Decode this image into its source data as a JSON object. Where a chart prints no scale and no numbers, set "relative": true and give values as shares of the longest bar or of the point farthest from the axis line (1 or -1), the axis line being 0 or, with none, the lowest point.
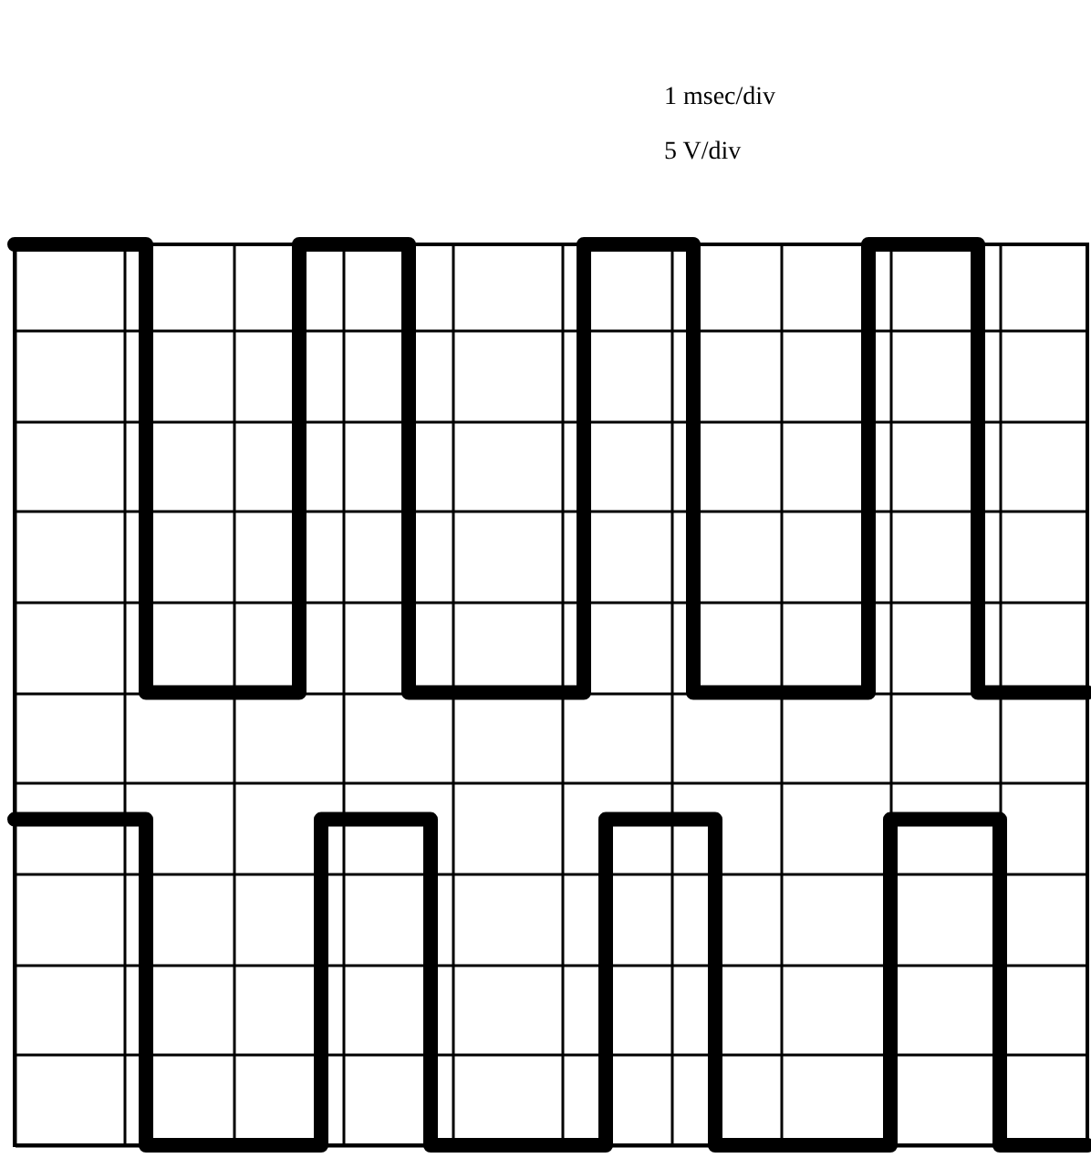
{
  "chart_data": {
    "type": "step",
    "relative": true,
    "grid": true,
    "annotations": [
      "1 msec/div",
      "5 V/div"
    ],
    "categories": [
      null,
      null,
      null,
      null,
      null,
      null,
      null,
      null,
      null,
      null,
      null,
      null,
      null,
      null,
      null,
      null,
      null,
      null,
      null,
      null,
      null,
      null,
      null,
      null,
      null,
      null,
      null,
      null,
      null,
      null,
      null,
      null,
      null,
      null,
      null,
      null,
      null,
      null,
      null,
      null,
      null,
      null,
      null,
      null,
      null,
      null,
      null,
      null,
      null,
      null
    ],
    "series": [
      {
        "color": "#000000",
        "values": [
          0.99,
          0.99,
          0.99,
          0.99,
          0.99,
          0.99,
          0,
          0,
          0,
          0,
          0,
          0,
          0,
          0.99,
          0.99,
          0.99,
          0.99,
          0.99,
          0,
          0,
          0,
          0,
          0,
          0,
          0,
          0,
          0.99,
          0.99,
          0.99,
          0.99,
          0.99,
          0,
          0,
          0,
          0,
          0,
          0,
          0,
          0,
          0.99,
          0.99,
          0.99,
          0.99,
          0.99,
          0,
          0,
          0,
          0,
          0,
          0
        ]
      },
      {
        "color": "#000000",
        "values": [
          -0.28,
          -0.28,
          -0.28,
          -0.28,
          -0.28,
          -0.28,
          -1,
          -1,
          -1,
          -1,
          -1,
          -1,
          -1,
          -1,
          -0.28,
          -0.28,
          -0.28,
          -0.28,
          -0.28,
          -1,
          -1,
          -1,
          -1,
          -1,
          -1,
          -1,
          -1,
          -0.28,
          -0.28,
          -0.28,
          -0.28,
          -0.28,
          -1,
          -1,
          -1,
          -1,
          -1,
          -1,
          -1,
          -1,
          -0.28,
          -0.28,
          -0.28,
          -0.28,
          -0.28,
          -1,
          -1,
          -1,
          -1,
          -1
        ]
      }
    ]
  }
}
